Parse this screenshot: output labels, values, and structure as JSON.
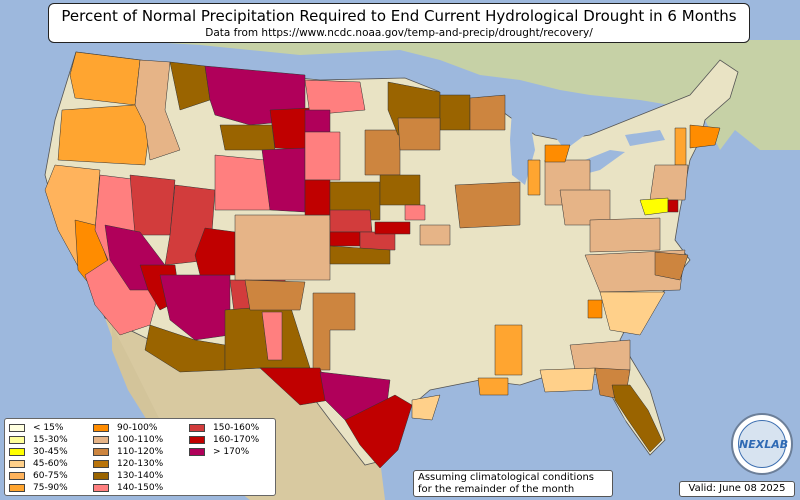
{
  "title": "Percent of Normal Precipitation Required to End Current Hydrological Drought in 6 Months",
  "subtitle": "Data from https://www.ncdc.noaa.gov/temp-and-precip/drought/recovery/",
  "legend": [
    {
      "label": "< 15%",
      "color": "#ffffe0"
    },
    {
      "label": "15-30%",
      "color": "#ffff99"
    },
    {
      "label": "30-45%",
      "color": "#ffff00"
    },
    {
      "label": "45-60%",
      "color": "#ffd08a"
    },
    {
      "label": "60-75%",
      "color": "#ffb35c"
    },
    {
      "label": "75-90%",
      "color": "#ffa530"
    },
    {
      "label": "90-100%",
      "color": "#ff8c00"
    },
    {
      "label": "100-110%",
      "color": "#e6b487"
    },
    {
      "label": "110-120%",
      "color": "#cd853f"
    },
    {
      "label": "120-130%",
      "color": "#b8730a"
    },
    {
      "label": "130-140%",
      "color": "#9a6400"
    },
    {
      "label": "140-150%",
      "color": "#ff7f7f"
    },
    {
      "label": "150-160%",
      "color": "#d23c3c"
    },
    {
      "label": "160-170%",
      "color": "#c00000"
    },
    {
      "label": "> 170%",
      "color": "#b0005a"
    }
  ],
  "note": {
    "line1": "Assuming climatological conditions",
    "line2": "for the remainder of the month"
  },
  "valid": "Valid: June 08 2025",
  "logo_text": "NEXLAB",
  "colors": {
    "ocean": "#9db8dd",
    "land": "#e9e3c4",
    "land_north": "#c8d3a8",
    "mountains": "#b9ae8d"
  }
}
